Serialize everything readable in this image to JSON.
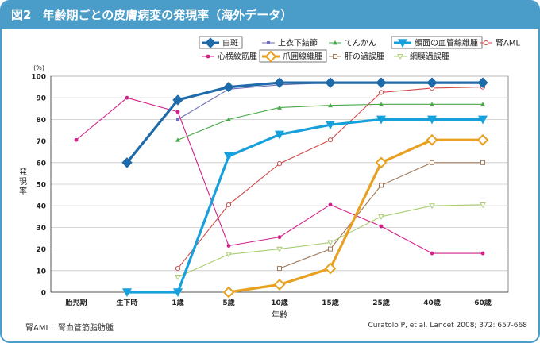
{
  "figure": {
    "number": "図2",
    "title": "年齢期ごとの皮膚病変の発現率（海外データ）",
    "footnote": "腎AML：腎血管筋脂肪腫",
    "source": "Curatolo P, et al. Lancet 2008; 372: 657-668"
  },
  "chart_data": {
    "type": "line",
    "title": "年齢期ごとの皮膚病変の発現率（海外データ）",
    "xlabel": "年齢",
    "ylabel": "発現率",
    "yunit": "(%)",
    "ylim": [
      0,
      100
    ],
    "yticks": [
      0,
      10,
      20,
      30,
      40,
      50,
      60,
      70,
      80,
      90,
      100
    ],
    "grid": true,
    "legend_position": "top-right",
    "categories": [
      "胎児期",
      "生下時",
      "1歳",
      "5歳",
      "10歳",
      "15歳",
      "25歳",
      "40歳",
      "60歳"
    ],
    "series": [
      {
        "name": "白斑",
        "color": "#1f6aa8",
        "marker": "diamond-filled",
        "thick": true,
        "values": [
          null,
          60,
          89,
          95,
          97,
          97,
          97,
          97,
          97
        ]
      },
      {
        "name": "上衣下結節",
        "color": "#6b6fb8",
        "marker": "square-small",
        "thick": false,
        "values": [
          null,
          null,
          80,
          94,
          96,
          97,
          null,
          null,
          null
        ]
      },
      {
        "name": "てんかん",
        "color": "#4aa84a",
        "marker": "triangle-up-filled",
        "thick": false,
        "values": [
          null,
          null,
          70.5,
          80,
          85.5,
          86.5,
          87,
          87,
          87
        ]
      },
      {
        "name": "顔面の血管線維腫",
        "color": "#18a0dc",
        "marker": "triangle-down-filled",
        "thick": true,
        "values": [
          null,
          0,
          0,
          63,
          73,
          77.5,
          80,
          80,
          80
        ]
      },
      {
        "name": "腎AML",
        "color": "#d04a4a",
        "marker": "circle-open",
        "thick": false,
        "values": [
          null,
          null,
          11,
          40.5,
          59.5,
          70.5,
          92.5,
          94.5,
          95
        ]
      },
      {
        "name": "心横紋筋腫",
        "color": "#d0208a",
        "marker": "circle-filled",
        "thick": false,
        "values": [
          70.5,
          90,
          83.5,
          21.5,
          25.5,
          40.5,
          30.5,
          18,
          18
        ]
      },
      {
        "name": "爪囲線維腫",
        "color": "#e8a020",
        "marker": "diamond-open",
        "thick": true,
        "values": [
          null,
          null,
          null,
          0,
          3.5,
          11,
          60,
          70.5,
          70.5
        ]
      },
      {
        "name": "肝の過誤腫",
        "color": "#a07858",
        "marker": "square-open",
        "thick": false,
        "values": [
          null,
          null,
          null,
          null,
          11,
          20,
          49.5,
          60,
          60
        ]
      },
      {
        "name": "網膜過誤腫",
        "color": "#a8cc70",
        "marker": "triangle-down-open",
        "thick": false,
        "values": [
          null,
          null,
          7,
          17.5,
          20,
          23,
          35,
          40,
          40.5
        ]
      }
    ]
  }
}
